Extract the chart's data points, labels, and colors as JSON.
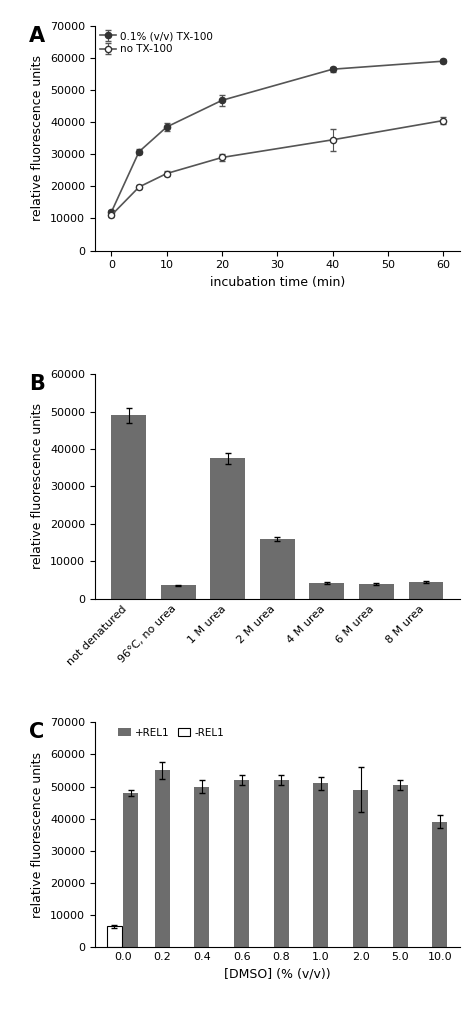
{
  "panel_A": {
    "tx100_x": [
      0,
      5,
      10,
      20,
      40,
      60
    ],
    "tx100_y": [
      12000,
      30800,
      38500,
      46800,
      56500,
      59000
    ],
    "tx100_err": [
      500,
      800,
      1200,
      1800,
      800,
      700
    ],
    "notx_x": [
      0,
      5,
      10,
      20,
      40,
      60
    ],
    "notx_y": [
      11000,
      19800,
      24000,
      29000,
      34500,
      40500
    ],
    "notx_err": [
      400,
      700,
      900,
      1200,
      3500,
      1200
    ],
    "xlabel": "incubation time (min)",
    "ylabel": "relative fluorescence units",
    "ylim": [
      0,
      70000
    ],
    "yticks": [
      0,
      10000,
      20000,
      30000,
      40000,
      50000,
      60000,
      70000
    ],
    "xticks": [
      0,
      10,
      20,
      30,
      40,
      50,
      60
    ],
    "legend1": "0.1% (v/v) TX-100",
    "legend2": "no TX-100",
    "label": "A"
  },
  "panel_B": {
    "categories": [
      "not denatured",
      "96°C, no urea",
      "1 M urea",
      "2 M urea",
      "4 M urea",
      "6 M urea",
      "8 M urea"
    ],
    "values": [
      49000,
      3600,
      37500,
      16000,
      4200,
      3900,
      4500
    ],
    "errors": [
      2000,
      200,
      1500,
      600,
      300,
      200,
      300
    ],
    "ylabel": "relative fluorescence units",
    "ylim": [
      0,
      60000
    ],
    "yticks": [
      0,
      10000,
      20000,
      30000,
      40000,
      50000,
      60000
    ],
    "bar_color": "#6d6d6d",
    "label": "B"
  },
  "panel_C": {
    "dmso_labels": [
      "0.0",
      "0.2",
      "0.4",
      "0.6",
      "0.8",
      "1.0",
      "2.0",
      "5.0",
      "10.0"
    ],
    "rel1_values": [
      48000,
      55000,
      50000,
      52000,
      52000,
      51000,
      49000,
      50500,
      39000
    ],
    "rel1_errors": [
      1000,
      2500,
      2000,
      1500,
      1500,
      2000,
      7000,
      1500,
      2000
    ],
    "norel1_value": 6500,
    "norel1_error": 500,
    "ylabel": "relative fluorescence units",
    "xlabel": "[DMSO] (% (v/v))",
    "ylim": [
      0,
      70000
    ],
    "yticks": [
      0,
      10000,
      20000,
      30000,
      40000,
      50000,
      60000,
      70000
    ],
    "bar_color": "#6d6d6d",
    "norel1_color": "#ffffff",
    "legend_rel1": "+REL1",
    "legend_norel1": "-REL1",
    "label": "C"
  },
  "background_color": "#ffffff",
  "line_color": "#555555",
  "marker_fill": "#333333",
  "label_fontsize": 15,
  "tick_fontsize": 8,
  "axis_label_fontsize": 9
}
